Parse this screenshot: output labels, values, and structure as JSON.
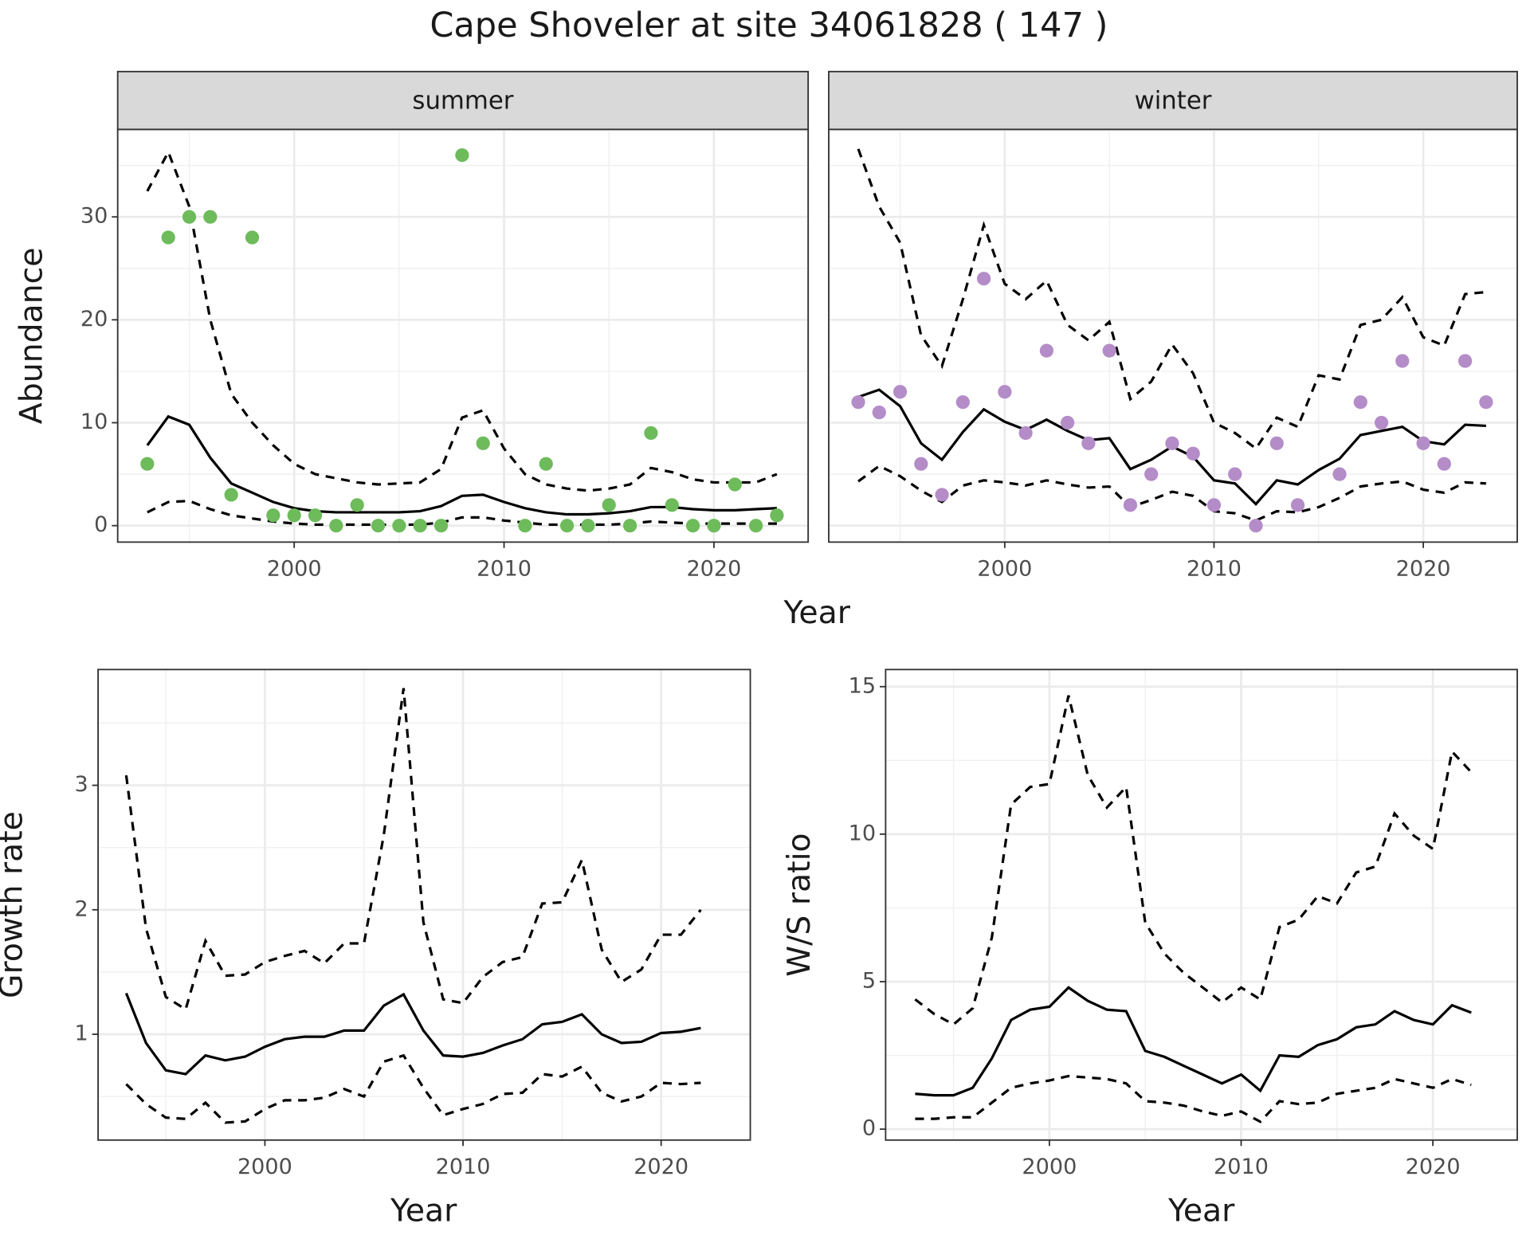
{
  "title": "Cape Shoveler at site 34061828 ( 147 )",
  "chart_data": [
    {
      "type": "line",
      "facet": "summer",
      "ylabel": "Abundance",
      "xlabel": "Year",
      "x": [
        1993,
        1994,
        1995,
        1996,
        1997,
        1998,
        1999,
        2000,
        2001,
        2002,
        2003,
        2004,
        2005,
        2006,
        2007,
        2008,
        2009,
        2010,
        2011,
        2012,
        2013,
        2014,
        2015,
        2016,
        2017,
        2018,
        2019,
        2020,
        2021,
        2022,
        2023
      ],
      "points": [
        6,
        28,
        30,
        30,
        3,
        28,
        1,
        1,
        1,
        0,
        2,
        0,
        0,
        0,
        0,
        36,
        8,
        null,
        0,
        6,
        0,
        0,
        2,
        0,
        9,
        2,
        0,
        0,
        4,
        0,
        1
      ],
      "point_color": "#6dbb5a",
      "values": [
        7.8,
        10.6,
        9.8,
        6.6,
        4.1,
        3.2,
        2.3,
        1.7,
        1.4,
        1.3,
        1.3,
        1.3,
        1.3,
        1.4,
        1.9,
        2.9,
        3.0,
        2.3,
        1.7,
        1.3,
        1.1,
        1.1,
        1.2,
        1.4,
        1.8,
        1.8,
        1.6,
        1.5,
        1.5,
        1.6,
        1.7
      ],
      "upper": [
        32.5,
        36.3,
        31,
        20,
        12.8,
        10,
        7.8,
        6,
        5,
        4.6,
        4.2,
        4,
        4.1,
        4.2,
        5.5,
        10.5,
        11.2,
        7.5,
        5,
        4,
        3.6,
        3.4,
        3.6,
        4,
        5.6,
        5.2,
        4.5,
        4.2,
        4.2,
        4.2,
        5
      ],
      "lower": [
        1.3,
        2.3,
        2.4,
        1.6,
        1.0,
        0.7,
        0.4,
        0.2,
        0.1,
        0.1,
        0.1,
        0.1,
        0.1,
        0.1,
        0.3,
        0.8,
        0.8,
        0.5,
        0.3,
        0.1,
        0.1,
        0.1,
        0.1,
        0.2,
        0.4,
        0.3,
        0.2,
        0.2,
        0.2,
        0.2,
        0.2
      ],
      "color": "#000000",
      "xlim": [
        1991.59,
        2024.49
      ],
      "xticks": [
        2000,
        2010,
        2020
      ],
      "ylim": [
        -1.6,
        38.5
      ],
      "yticks": [
        0,
        10,
        20,
        30
      ],
      "show_ytick_labels": true,
      "grid": true
    },
    {
      "type": "line",
      "facet": "winter",
      "x": [
        1993,
        1994,
        1995,
        1996,
        1997,
        1998,
        1999,
        2000,
        2001,
        2002,
        2003,
        2004,
        2005,
        2006,
        2007,
        2008,
        2009,
        2010,
        2011,
        2012,
        2013,
        2014,
        2015,
        2016,
        2017,
        2018,
        2019,
        2020,
        2021,
        2022,
        2023
      ],
      "points": [
        12,
        11,
        13,
        6,
        3,
        12,
        24,
        13,
        9,
        17,
        10,
        8,
        17,
        2,
        5,
        8,
        7,
        2,
        5,
        0,
        8,
        2,
        null,
        5,
        12,
        10,
        16,
        8,
        6,
        16,
        12
      ],
      "point_color": "#b48cc8",
      "values": [
        12.5,
        13.2,
        11.6,
        8,
        6.4,
        9.1,
        11.3,
        10.1,
        9.3,
        10.3,
        9.2,
        8.3,
        8.5,
        5.5,
        6.4,
        7.7,
        6.7,
        4.4,
        4.1,
        2.1,
        4.4,
        4.0,
        5.4,
        6.5,
        8.8,
        9.2,
        9.6,
        8.2,
        7.9,
        9.8,
        9.7
      ],
      "upper": [
        36.6,
        31,
        27.5,
        18.5,
        15.5,
        22,
        29.2,
        23.5,
        22,
        23.8,
        19.5,
        18,
        19.8,
        12.3,
        14,
        17.6,
        14.8,
        10,
        9,
        7.5,
        10.5,
        9.6,
        14.6,
        14.2,
        19.5,
        20,
        22.2,
        18.3,
        17.5,
        22.5,
        22.7
      ],
      "lower": [
        4.3,
        5.8,
        4.8,
        3.4,
        2.3,
        3.9,
        4.4,
        4.2,
        3.9,
        4.4,
        4.0,
        3.7,
        3.8,
        1.8,
        2.5,
        3.3,
        2.9,
        1.4,
        1.2,
        0.5,
        1.4,
        1.3,
        1.8,
        2.7,
        3.8,
        4.1,
        4.3,
        3.5,
        3.2,
        4.2,
        4.1
      ],
      "color": "#000000",
      "xlim": [
        1991.59,
        2024.49
      ],
      "xticks": [
        2000,
        2010,
        2020
      ],
      "ylim": [
        -1.6,
        38.5
      ],
      "yticks": [
        0,
        10,
        20,
        30
      ],
      "show_ytick_labels": false,
      "grid": true
    },
    {
      "type": "line",
      "ylabel": "Growth rate",
      "xlabel": "Year",
      "x": [
        1993,
        1994,
        1995,
        1996,
        1997,
        1998,
        1999,
        2000,
        2001,
        2002,
        2003,
        2004,
        2005,
        2006,
        2007,
        2008,
        2009,
        2010,
        2011,
        2012,
        2013,
        2014,
        2015,
        2016,
        2017,
        2018,
        2019,
        2020,
        2021,
        2022
      ],
      "values": [
        1.33,
        0.93,
        0.71,
        0.68,
        0.83,
        0.79,
        0.82,
        0.9,
        0.96,
        0.98,
        0.98,
        1.03,
        1.03,
        1.23,
        1.32,
        1.03,
        0.83,
        0.82,
        0.85,
        0.91,
        0.96,
        1.08,
        1.1,
        1.16,
        1.0,
        0.93,
        0.94,
        1.01,
        1.02,
        1.05
      ],
      "upper": [
        3.08,
        1.85,
        1.3,
        1.2,
        1.75,
        1.47,
        1.48,
        1.58,
        1.63,
        1.67,
        1.57,
        1.73,
        1.73,
        2.6,
        3.78,
        1.9,
        1.28,
        1.25,
        1.46,
        1.58,
        1.62,
        2.05,
        2.06,
        2.4,
        1.68,
        1.42,
        1.52,
        1.8,
        1.8,
        2.0
      ],
      "lower": [
        0.6,
        0.44,
        0.33,
        0.32,
        0.45,
        0.29,
        0.3,
        0.4,
        0.47,
        0.47,
        0.49,
        0.56,
        0.5,
        0.78,
        0.83,
        0.57,
        0.35,
        0.4,
        0.44,
        0.52,
        0.53,
        0.68,
        0.66,
        0.74,
        0.53,
        0.46,
        0.5,
        0.61,
        0.6,
        0.61
      ],
      "color": "#000000",
      "xlim": [
        1991.58,
        2024.5
      ],
      "xticks": [
        2000,
        2010,
        2020
      ],
      "ylim": [
        0.15,
        3.93
      ],
      "yticks": [
        1,
        2,
        3
      ],
      "show_ytick_labels": true,
      "grid": true
    },
    {
      "type": "line",
      "ylabel": "W/S ratio",
      "xlabel": "Year",
      "x": [
        1993,
        1994,
        1995,
        1996,
        1997,
        1998,
        1999,
        2000,
        2001,
        2002,
        2003,
        2004,
        2005,
        2006,
        2007,
        2008,
        2009,
        2010,
        2011,
        2012,
        2013,
        2014,
        2015,
        2016,
        2017,
        2018,
        2019,
        2020,
        2021,
        2022
      ],
      "values": [
        1.2,
        1.15,
        1.15,
        1.4,
        2.4,
        3.7,
        4.05,
        4.15,
        4.8,
        4.35,
        4.05,
        4.0,
        2.65,
        2.45,
        2.15,
        1.85,
        1.55,
        1.85,
        1.3,
        2.5,
        2.45,
        2.85,
        3.05,
        3.45,
        3.55,
        4.0,
        3.7,
        3.55,
        4.2,
        3.95
      ],
      "upper": [
        4.4,
        3.9,
        3.55,
        4.1,
        6.5,
        11.0,
        11.6,
        11.7,
        14.7,
        12.0,
        10.9,
        11.6,
        7.0,
        5.95,
        5.3,
        4.8,
        4.3,
        4.8,
        4.4,
        6.85,
        7.1,
        7.9,
        7.65,
        8.7,
        8.9,
        10.7,
        9.95,
        9.5,
        12.8,
        12.1
      ],
      "lower": [
        0.35,
        0.35,
        0.4,
        0.4,
        0.9,
        1.4,
        1.55,
        1.65,
        1.8,
        1.75,
        1.7,
        1.55,
        0.95,
        0.9,
        0.8,
        0.6,
        0.45,
        0.6,
        0.25,
        0.95,
        0.85,
        0.9,
        1.2,
        1.3,
        1.4,
        1.7,
        1.55,
        1.4,
        1.7,
        1.5
      ],
      "color": "#000000",
      "xlim": [
        1991.46,
        2024.4
      ],
      "xticks": [
        2000,
        2010,
        2020
      ],
      "ylim": [
        -0.37,
        15.58
      ],
      "yticks": [
        0,
        5,
        10,
        15
      ],
      "show_ytick_labels": true,
      "grid": true
    }
  ]
}
